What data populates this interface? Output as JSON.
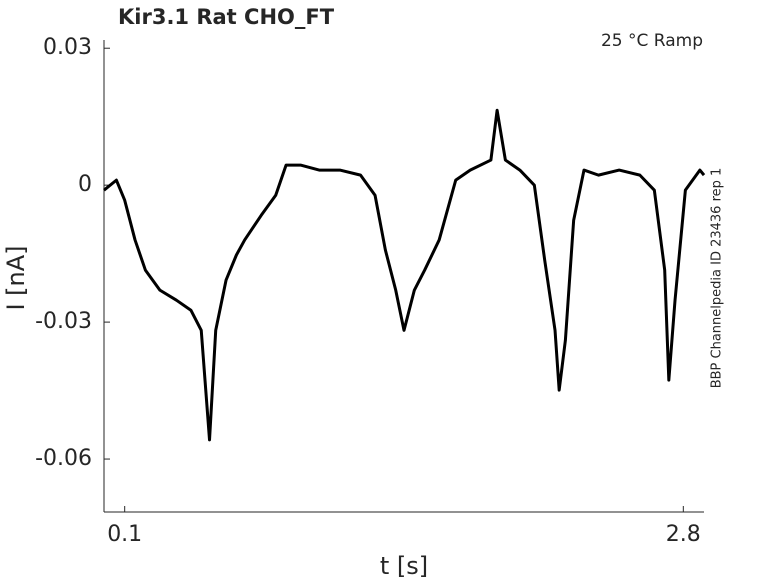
{
  "chart_data": {
    "type": "line",
    "title": "Kir3.1  Rat  CHO_FT",
    "annotation": "25 °C  Ramp",
    "side_note": "BBP Channelpedia ID 23436 rep 1",
    "xlabel": "t [s]",
    "ylabel": "I [nA]",
    "color": "#000000",
    "x": [
      0.0,
      0.06,
      0.1,
      0.15,
      0.2,
      0.27,
      0.35,
      0.42,
      0.47,
      0.51,
      0.54,
      0.59,
      0.64,
      0.68,
      0.76,
      0.83,
      0.88,
      0.95,
      1.04,
      1.14,
      1.24,
      1.31,
      1.36,
      1.41,
      1.45,
      1.5,
      1.55,
      1.62,
      1.7,
      1.77,
      1.87,
      1.9,
      1.94,
      2.01,
      2.08,
      2.13,
      2.18,
      2.2,
      2.23,
      2.27,
      2.32,
      2.39,
      2.49,
      2.59,
      2.66,
      2.71,
      2.73,
      2.76,
      2.81,
      2.88,
      2.9
    ],
    "values": [
      -0.0011,
      0.0011,
      -0.0033,
      -0.012,
      -0.0186,
      -0.023,
      -0.0252,
      -0.0274,
      -0.0318,
      -0.0558,
      -0.0318,
      -0.0208,
      -0.0153,
      -0.012,
      -0.0066,
      -0.0022,
      0.0044,
      0.0044,
      0.0033,
      0.0033,
      0.0022,
      -0.0022,
      -0.0142,
      -0.023,
      -0.0318,
      -0.023,
      -0.0186,
      -0.012,
      0.0011,
      0.0033,
      0.0055,
      0.0164,
      0.0055,
      0.0033,
      0,
      -0.0164,
      -0.0318,
      -0.0449,
      -0.034,
      -0.0077,
      0.0033,
      0.0022,
      0.0033,
      0.0022,
      -0.0011,
      -0.0186,
      -0.0427,
      -0.0252,
      -0.0011,
      0.0033,
      0.0022
    ],
    "xlim": [
      0,
      2.9
    ],
    "xticks": [
      0.1,
      2.8
    ],
    "ylim": [
      -0.0716,
      0.0318
    ],
    "yticks": [
      0.03,
      0,
      -0.03,
      -0.06
    ]
  }
}
